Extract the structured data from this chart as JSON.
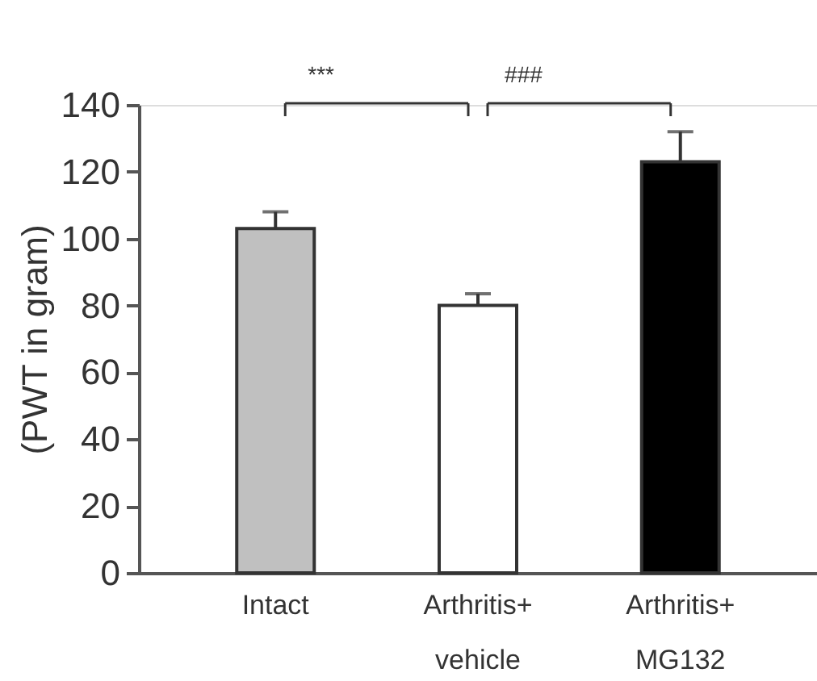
{
  "chart_data": {
    "type": "bar",
    "ylabel": "(PWT in gram)",
    "categories": [
      "Intact",
      "Arthritis+ vehicle",
      "Arthritis+ MG132"
    ],
    "values": [
      103,
      80,
      123
    ],
    "colors": [
      "#c0c0c0",
      "#ffffff",
      "#000000"
    ],
    "errors": [
      [
        103,
        108
      ],
      [
        80,
        83.5
      ],
      [
        123,
        132
      ]
    ],
    "ylim": [
      0,
      140
    ],
    "yticks": [
      0,
      20,
      40,
      60,
      80,
      100,
      120,
      140
    ],
    "annotations": [
      "***",
      "###"
    ],
    "grid": false
  }
}
